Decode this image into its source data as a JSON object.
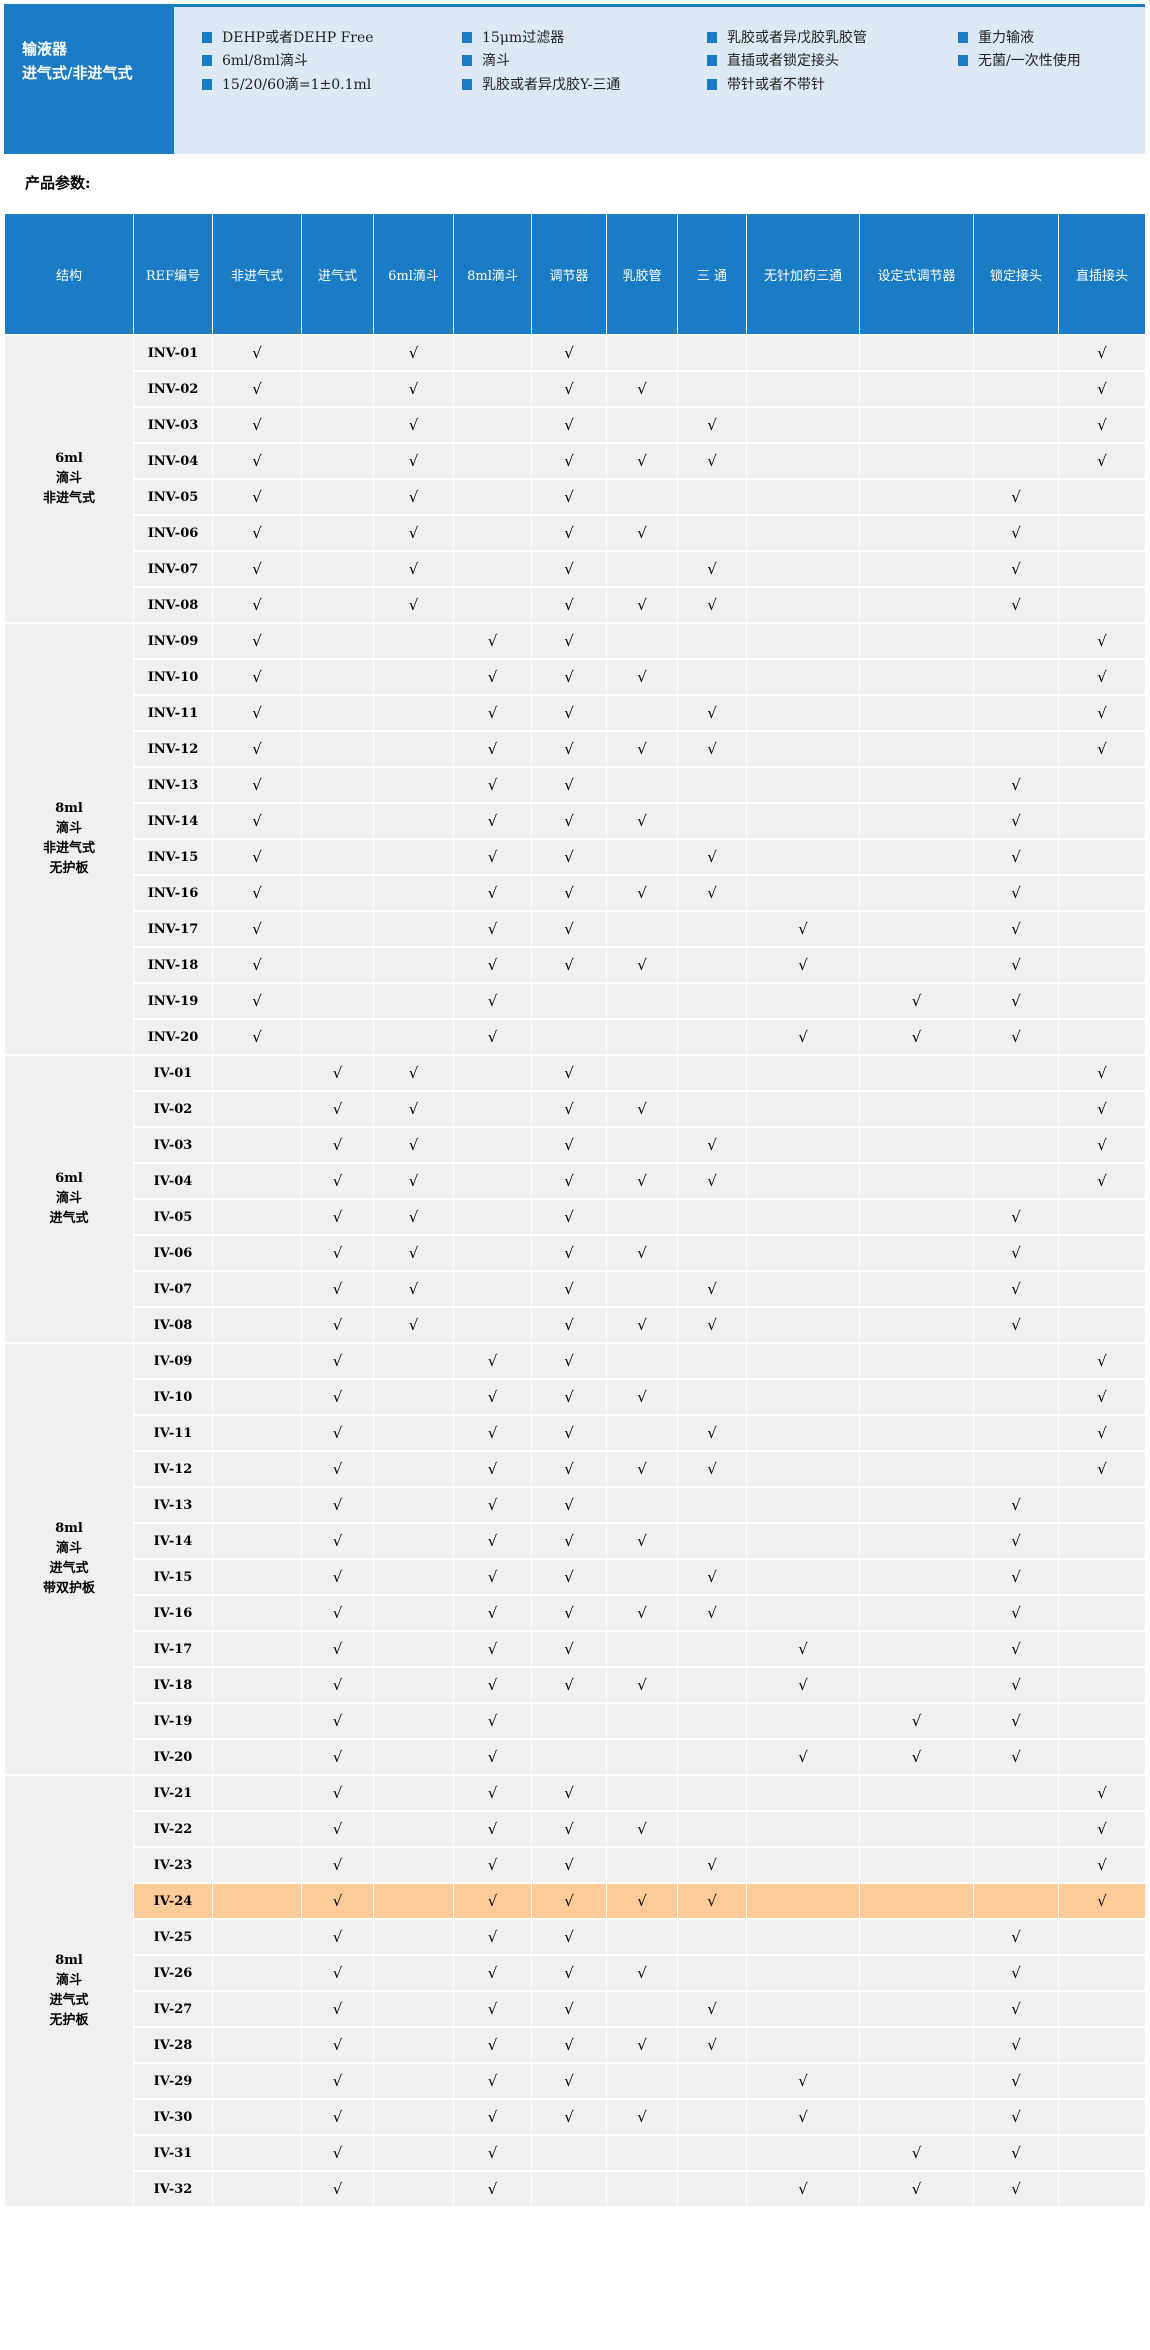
{
  "banner": {
    "title_lines": [
      "输液器",
      "进气式/非进气式"
    ],
    "features": [
      [
        "DEHP或者DEHP Free",
        "6ml/8ml滴斗",
        "15/20/60滴=1±0.1ml"
      ],
      [
        "15μm过滤器",
        "滴斗",
        "乳胶或者异戊胶Y-三通"
      ],
      [
        "乳胶或者异戊胶乳胶管",
        "直插或者锁定接头",
        "带针或者不带针"
      ],
      [
        "重力输液",
        "无菌/一次性使用"
      ]
    ],
    "accent_color": "#1b7cc6"
  },
  "section_label": "产品参数:",
  "table": {
    "headers": [
      "结构",
      "REF编号",
      "非进气式",
      "进气式",
      "6ml滴斗",
      "8ml滴斗",
      "调节器",
      "乳胶管",
      "三 通",
      "无针加药三通",
      "设定式调节器",
      "锁定接头",
      "直插接头"
    ],
    "check_symbol": "√",
    "highlight_color": "#ffcb99",
    "groups": [
      {
        "label": [
          "6ml",
          "滴斗",
          "非进气式"
        ],
        "rows": [
          {
            "ref": "INV-01",
            "checks": [
              1,
              0,
              1,
              0,
              1,
              0,
              0,
              0,
              0,
              0,
              1
            ]
          },
          {
            "ref": "INV-02",
            "checks": [
              1,
              0,
              1,
              0,
              1,
              1,
              0,
              0,
              0,
              0,
              1
            ]
          },
          {
            "ref": "INV-03",
            "checks": [
              1,
              0,
              1,
              0,
              1,
              0,
              1,
              0,
              0,
              0,
              1
            ]
          },
          {
            "ref": "INV-04",
            "checks": [
              1,
              0,
              1,
              0,
              1,
              1,
              1,
              0,
              0,
              0,
              1
            ]
          },
          {
            "ref": "INV-05",
            "checks": [
              1,
              0,
              1,
              0,
              1,
              0,
              0,
              0,
              0,
              1,
              0
            ]
          },
          {
            "ref": "INV-06",
            "checks": [
              1,
              0,
              1,
              0,
              1,
              1,
              0,
              0,
              0,
              1,
              0
            ]
          },
          {
            "ref": "INV-07",
            "checks": [
              1,
              0,
              1,
              0,
              1,
              0,
              1,
              0,
              0,
              1,
              0
            ]
          },
          {
            "ref": "INV-08",
            "checks": [
              1,
              0,
              1,
              0,
              1,
              1,
              1,
              0,
              0,
              1,
              0
            ]
          }
        ]
      },
      {
        "label": [
          "8ml",
          "滴斗",
          "非进气式",
          "无护板"
        ],
        "rows": [
          {
            "ref": "INV-09",
            "checks": [
              1,
              0,
              0,
              1,
              1,
              0,
              0,
              0,
              0,
              0,
              1
            ]
          },
          {
            "ref": "INV-10",
            "checks": [
              1,
              0,
              0,
              1,
              1,
              1,
              0,
              0,
              0,
              0,
              1
            ]
          },
          {
            "ref": "INV-11",
            "checks": [
              1,
              0,
              0,
              1,
              1,
              0,
              1,
              0,
              0,
              0,
              1
            ]
          },
          {
            "ref": "INV-12",
            "checks": [
              1,
              0,
              0,
              1,
              1,
              1,
              1,
              0,
              0,
              0,
              1
            ]
          },
          {
            "ref": "INV-13",
            "checks": [
              1,
              0,
              0,
              1,
              1,
              0,
              0,
              0,
              0,
              1,
              0
            ]
          },
          {
            "ref": "INV-14",
            "checks": [
              1,
              0,
              0,
              1,
              1,
              1,
              0,
              0,
              0,
              1,
              0
            ]
          },
          {
            "ref": "INV-15",
            "checks": [
              1,
              0,
              0,
              1,
              1,
              0,
              1,
              0,
              0,
              1,
              0
            ]
          },
          {
            "ref": "INV-16",
            "checks": [
              1,
              0,
              0,
              1,
              1,
              1,
              1,
              0,
              0,
              1,
              0
            ]
          },
          {
            "ref": "INV-17",
            "checks": [
              1,
              0,
              0,
              1,
              1,
              0,
              0,
              1,
              0,
              1,
              0
            ]
          },
          {
            "ref": "INV-18",
            "checks": [
              1,
              0,
              0,
              1,
              1,
              1,
              0,
              1,
              0,
              1,
              0
            ]
          },
          {
            "ref": "INV-19",
            "checks": [
              1,
              0,
              0,
              1,
              0,
              0,
              0,
              0,
              1,
              1,
              0
            ]
          },
          {
            "ref": "INV-20",
            "checks": [
              1,
              0,
              0,
              1,
              0,
              0,
              0,
              1,
              1,
              1,
              0
            ]
          }
        ]
      },
      {
        "label": [
          "6ml",
          "滴斗",
          "进气式"
        ],
        "rows": [
          {
            "ref": "IV-01",
            "checks": [
              0,
              1,
              1,
              0,
              1,
              0,
              0,
              0,
              0,
              0,
              1
            ]
          },
          {
            "ref": "IV-02",
            "checks": [
              0,
              1,
              1,
              0,
              1,
              1,
              0,
              0,
              0,
              0,
              1
            ]
          },
          {
            "ref": "IV-03",
            "checks": [
              0,
              1,
              1,
              0,
              1,
              0,
              1,
              0,
              0,
              0,
              1
            ]
          },
          {
            "ref": "IV-04",
            "checks": [
              0,
              1,
              1,
              0,
              1,
              1,
              1,
              0,
              0,
              0,
              1
            ]
          },
          {
            "ref": "IV-05",
            "checks": [
              0,
              1,
              1,
              0,
              1,
              0,
              0,
              0,
              0,
              1,
              0
            ]
          },
          {
            "ref": "IV-06",
            "checks": [
              0,
              1,
              1,
              0,
              1,
              1,
              0,
              0,
              0,
              1,
              0
            ]
          },
          {
            "ref": "IV-07",
            "checks": [
              0,
              1,
              1,
              0,
              1,
              0,
              1,
              0,
              0,
              1,
              0
            ]
          },
          {
            "ref": "IV-08",
            "checks": [
              0,
              1,
              1,
              0,
              1,
              1,
              1,
              0,
              0,
              1,
              0
            ]
          }
        ]
      },
      {
        "label": [
          "8ml",
          "滴斗",
          "进气式",
          "带双护板"
        ],
        "rows": [
          {
            "ref": "IV-09",
            "checks": [
              0,
              1,
              0,
              1,
              1,
              0,
              0,
              0,
              0,
              0,
              1
            ]
          },
          {
            "ref": "IV-10",
            "checks": [
              0,
              1,
              0,
              1,
              1,
              1,
              0,
              0,
              0,
              0,
              1
            ]
          },
          {
            "ref": "IV-11",
            "checks": [
              0,
              1,
              0,
              1,
              1,
              0,
              1,
              0,
              0,
              0,
              1
            ]
          },
          {
            "ref": "IV-12",
            "checks": [
              0,
              1,
              0,
              1,
              1,
              1,
              1,
              0,
              0,
              0,
              1
            ]
          },
          {
            "ref": "IV-13",
            "checks": [
              0,
              1,
              0,
              1,
              1,
              0,
              0,
              0,
              0,
              1,
              0
            ]
          },
          {
            "ref": "IV-14",
            "checks": [
              0,
              1,
              0,
              1,
              1,
              1,
              0,
              0,
              0,
              1,
              0
            ]
          },
          {
            "ref": "IV-15",
            "checks": [
              0,
              1,
              0,
              1,
              1,
              0,
              1,
              0,
              0,
              1,
              0
            ]
          },
          {
            "ref": "IV-16",
            "checks": [
              0,
              1,
              0,
              1,
              1,
              1,
              1,
              0,
              0,
              1,
              0
            ]
          },
          {
            "ref": "IV-17",
            "checks": [
              0,
              1,
              0,
              1,
              1,
              0,
              0,
              1,
              0,
              1,
              0
            ]
          },
          {
            "ref": "IV-18",
            "checks": [
              0,
              1,
              0,
              1,
              1,
              1,
              0,
              1,
              0,
              1,
              0
            ]
          },
          {
            "ref": "IV-19",
            "checks": [
              0,
              1,
              0,
              1,
              0,
              0,
              0,
              0,
              1,
              1,
              0
            ]
          },
          {
            "ref": "IV-20",
            "checks": [
              0,
              1,
              0,
              1,
              0,
              0,
              0,
              1,
              1,
              1,
              0
            ]
          }
        ]
      },
      {
        "label": [
          "8ml",
          "滴斗",
          "进气式",
          "无护板"
        ],
        "rows": [
          {
            "ref": "IV-21",
            "checks": [
              0,
              1,
              0,
              1,
              1,
              0,
              0,
              0,
              0,
              0,
              1
            ]
          },
          {
            "ref": "IV-22",
            "checks": [
              0,
              1,
              0,
              1,
              1,
              1,
              0,
              0,
              0,
              0,
              1
            ]
          },
          {
            "ref": "IV-23",
            "checks": [
              0,
              1,
              0,
              1,
              1,
              0,
              1,
              0,
              0,
              0,
              1
            ]
          },
          {
            "ref": "IV-24",
            "checks": [
              0,
              1,
              0,
              1,
              1,
              1,
              1,
              0,
              0,
              0,
              1
            ],
            "highlight": true
          },
          {
            "ref": "IV-25",
            "checks": [
              0,
              1,
              0,
              1,
              1,
              0,
              0,
              0,
              0,
              1,
              0
            ]
          },
          {
            "ref": "IV-26",
            "checks": [
              0,
              1,
              0,
              1,
              1,
              1,
              0,
              0,
              0,
              1,
              0
            ]
          },
          {
            "ref": "IV-27",
            "checks": [
              0,
              1,
              0,
              1,
              1,
              0,
              1,
              0,
              0,
              1,
              0
            ]
          },
          {
            "ref": "IV-28",
            "checks": [
              0,
              1,
              0,
              1,
              1,
              1,
              1,
              0,
              0,
              1,
              0
            ]
          },
          {
            "ref": "IV-29",
            "checks": [
              0,
              1,
              0,
              1,
              1,
              0,
              0,
              1,
              0,
              1,
              0
            ]
          },
          {
            "ref": "IV-30",
            "checks": [
              0,
              1,
              0,
              1,
              1,
              1,
              0,
              1,
              0,
              1,
              0
            ]
          },
          {
            "ref": "IV-31",
            "checks": [
              0,
              1,
              0,
              1,
              0,
              0,
              0,
              0,
              1,
              1,
              0
            ]
          },
          {
            "ref": "IV-32",
            "checks": [
              0,
              1,
              0,
              1,
              0,
              0,
              0,
              1,
              1,
              1,
              0
            ]
          }
        ]
      }
    ]
  }
}
